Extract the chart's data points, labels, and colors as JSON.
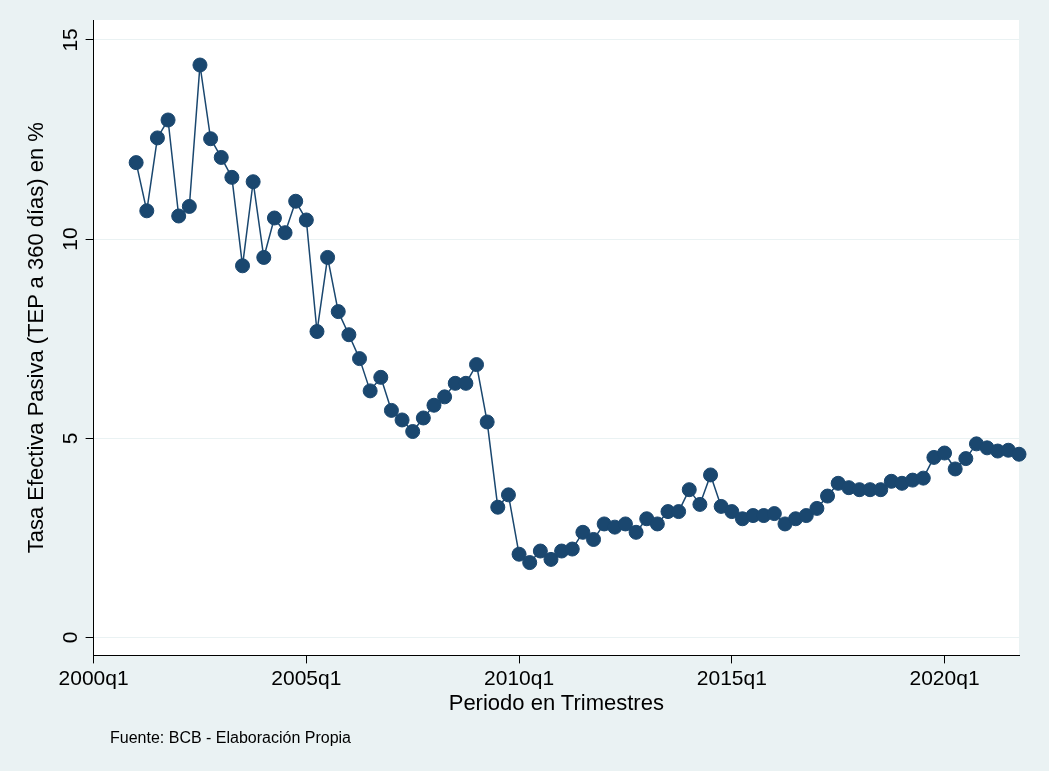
{
  "chart_data": {
    "type": "line",
    "xlabel": "Periodo en Trimestres",
    "ylabel": "Tasa Efectiva Pasiva (TEP a 360 días) en %",
    "annotations": [
      "Fuente: BCB - Elaboración Propia"
    ],
    "categories": [
      "2000q1",
      null,
      null,
      null,
      null,
      null,
      null,
      null,
      null,
      null,
      null,
      null,
      null,
      null,
      null,
      null,
      null,
      null,
      null,
      null,
      "2005q1",
      null,
      null,
      null,
      null,
      null,
      null,
      null,
      null,
      null,
      null,
      null,
      null,
      null,
      null,
      null,
      null,
      null,
      null,
      null,
      "2010q1",
      null,
      null,
      null,
      null,
      null,
      null,
      null,
      null,
      null,
      null,
      null,
      null,
      null,
      null,
      null,
      null,
      null,
      null,
      null,
      "2015q1",
      null,
      null,
      null,
      null,
      null,
      null,
      null,
      null,
      null,
      null,
      null,
      null,
      null,
      null,
      null,
      null,
      null,
      null,
      null,
      "2020q1",
      null,
      null,
      null,
      null,
      null,
      null,
      null
    ],
    "series": [
      {
        "color": "#1a476f",
        "values": [
          null,
          null,
          null,
          null,
          11.92,
          10.71,
          12.54,
          12.99,
          10.58,
          10.82,
          14.37,
          12.52,
          12.05,
          11.55,
          9.33,
          11.44,
          9.54,
          10.53,
          10.16,
          10.95,
          10.48,
          7.68,
          9.54,
          8.18,
          7.6,
          7.0,
          6.19,
          6.53,
          5.7,
          5.46,
          5.17,
          5.51,
          5.83,
          6.04,
          6.38,
          6.38,
          6.85,
          5.41,
          3.27,
          3.58,
          2.09,
          1.88,
          2.17,
          1.96,
          2.17,
          2.22,
          2.64,
          2.46,
          2.85,
          2.77,
          2.85,
          2.64,
          2.98,
          2.85,
          3.16,
          3.16,
          3.71,
          3.34,
          4.08,
          3.29,
          3.16,
          2.98,
          3.06,
          3.06,
          3.11,
          2.85,
          2.98,
          3.06,
          3.24,
          3.55,
          3.87,
          3.76,
          3.71,
          3.71,
          3.71,
          3.92,
          3.87,
          3.95,
          4.0,
          4.52,
          4.63,
          4.23,
          4.49,
          4.86,
          4.76,
          4.68,
          4.7,
          4.6
        ]
      }
    ],
    "ylim": [
      -0.45,
      15.5
    ],
    "yticks": [
      0,
      5,
      10,
      15
    ],
    "grid": "y",
    "marker": "circle",
    "line_style": "solid",
    "legend": false
  }
}
